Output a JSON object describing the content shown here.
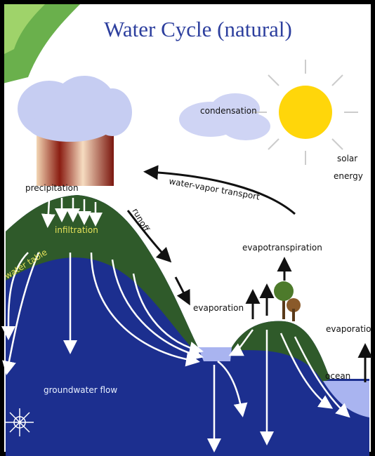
{
  "title": "Water Cycle (natural)",
  "labels": [
    "condensation",
    "solar",
    "energy",
    "precipitation",
    "water-vapor transport",
    "runoff",
    "infiltration",
    "water table",
    "evapotranspiration",
    "evaporation",
    "evaporatio",
    "ocean",
    "groundwater flow"
  ]
}
